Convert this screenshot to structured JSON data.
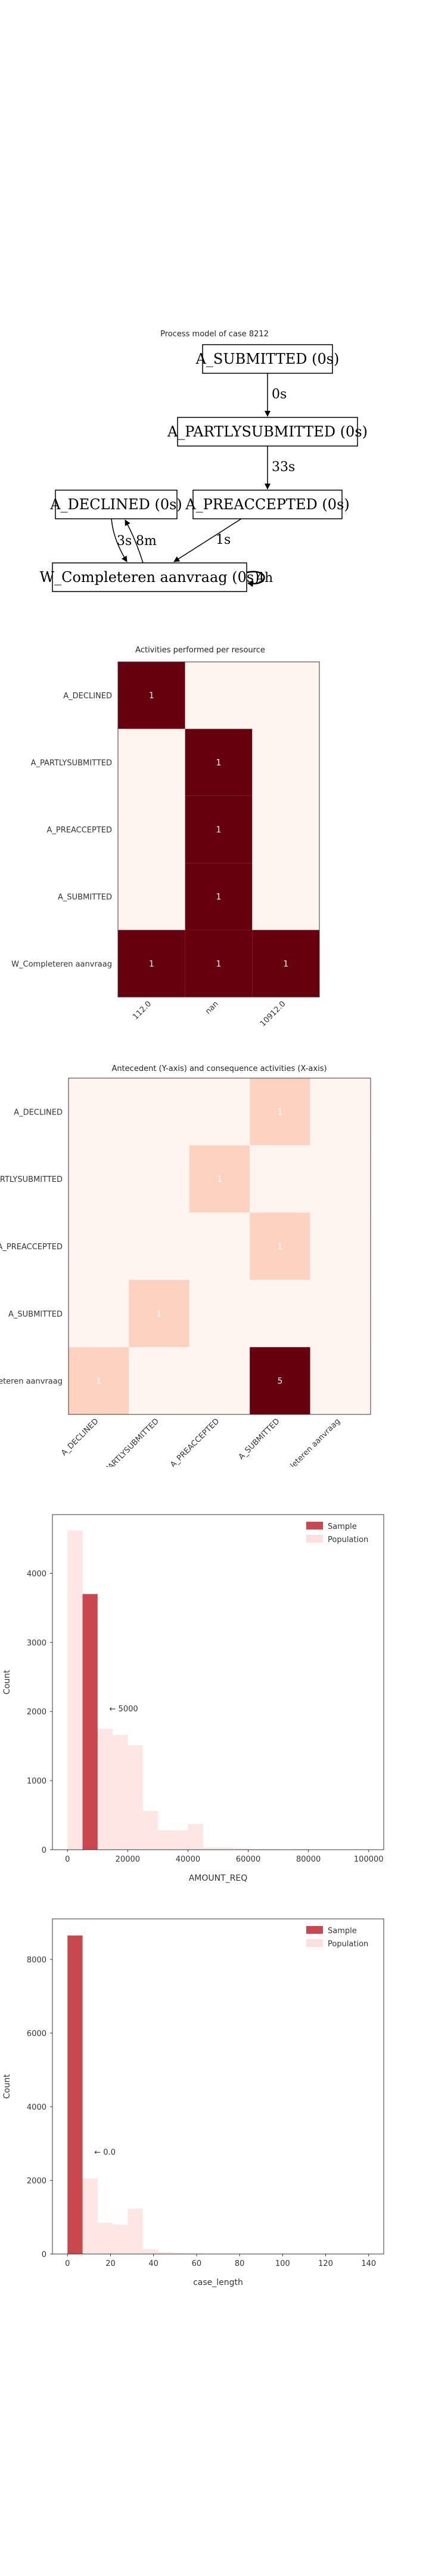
{
  "chart_data": [
    {
      "type": "diagram",
      "title": "Process model of case 8212",
      "nodes": [
        {
          "id": "n_sub",
          "label": "A_SUBMITTED (0s)"
        },
        {
          "id": "n_part",
          "label": "A_PARTLYSUBMITTED (0s)"
        },
        {
          "id": "n_dec",
          "label": "A_DECLINED (0s)"
        },
        {
          "id": "n_pre",
          "label": "A_PREACCEPTED (0s)"
        },
        {
          "id": "n_wc",
          "label": "W_Completeren aanvraag (0s)"
        }
      ],
      "edges": [
        {
          "from": "n_sub",
          "to": "n_part",
          "label": "0s"
        },
        {
          "from": "n_part",
          "to": "n_pre",
          "label": "33s"
        },
        {
          "from": "n_pre",
          "to": "n_wc",
          "label": "1s"
        },
        {
          "from": "n_dec",
          "to": "n_wc",
          "label": "3s"
        },
        {
          "from": "n_wc",
          "to": "n_dec",
          "label": "8m"
        },
        {
          "from": "n_wc",
          "to": "n_wc",
          "label": "4h"
        }
      ]
    },
    {
      "type": "heatmap",
      "title": "Activities performed per resource",
      "xlabels": [
        "112.0",
        "nan",
        "10912.0"
      ],
      "ylabels": [
        "A_DECLINED",
        "A_PARTLYSUBMITTED",
        "A_PREACCEPTED",
        "A_SUBMITTED",
        "W_Completeren aanvraag"
      ],
      "values": [
        [
          1,
          0,
          0
        ],
        [
          0,
          1,
          0
        ],
        [
          0,
          1,
          0
        ],
        [
          0,
          1,
          0
        ],
        [
          1,
          1,
          1
        ]
      ],
      "colors": {
        "low": "#fff5f0",
        "high": "#67000d"
      }
    },
    {
      "type": "heatmap",
      "title": "Antecedent (Y-axis) and consequence activities (X-axis)",
      "xlabels": [
        "A_DECLINED",
        "A_PARTLYSUBMITTED",
        "A_PREACCEPTED",
        "A_SUBMITTED",
        "W_Completeren aanvraag"
      ],
      "ylabels": [
        "A_DECLINED",
        "A_PARTLYSUBMITTED",
        "A_PREACCEPTED",
        "A_SUBMITTED",
        "W_Completeren aanvraag"
      ],
      "values": [
        [
          0,
          0,
          0,
          1,
          0
        ],
        [
          0,
          0,
          1,
          0,
          0
        ],
        [
          0,
          0,
          0,
          1,
          0
        ],
        [
          0,
          1,
          0,
          0,
          0
        ],
        [
          1,
          0,
          0,
          5,
          0
        ]
      ],
      "colors": {
        "low": "#fff5f0",
        "high": "#67000d"
      }
    },
    {
      "type": "bar",
      "xlabel": "AMOUNT_REQ",
      "ylabel": "Count",
      "xlim": [
        -5000,
        105000
      ],
      "ylim": [
        0,
        4850
      ],
      "xticks": [
        0,
        20000,
        40000,
        60000,
        80000,
        100000
      ],
      "yticks": [
        0,
        1000,
        2000,
        3000,
        4000
      ],
      "bin_width": 5000,
      "series": [
        {
          "name": "Sample",
          "bins": [
            {
              "x": 5000,
              "count": 3700
            }
          ],
          "color": "#c9474f"
        },
        {
          "name": "Population",
          "bins": [
            {
              "x": 0,
              "count": 4620
            },
            {
              "x": 5000,
              "count": 3250
            },
            {
              "x": 10000,
              "count": 1750
            },
            {
              "x": 15000,
              "count": 1660
            },
            {
              "x": 20000,
              "count": 1510
            },
            {
              "x": 25000,
              "count": 560
            },
            {
              "x": 30000,
              "count": 280
            },
            {
              "x": 35000,
              "count": 280
            },
            {
              "x": 40000,
              "count": 370
            },
            {
              "x": 45000,
              "count": 30
            },
            {
              "x": 50000,
              "count": 30
            },
            {
              "x": 55000,
              "count": 20
            },
            {
              "x": 60000,
              "count": 10
            },
            {
              "x": 65000,
              "count": 10
            },
            {
              "x": 75000,
              "count": 10
            }
          ],
          "color": "#fde0dd"
        }
      ],
      "annotation": {
        "text": "← 5000",
        "x": 5000,
        "y": 2000
      },
      "legend": "top-right"
    },
    {
      "type": "bar",
      "xlabel": "case_length",
      "ylabel": "Count",
      "xlim": [
        -7,
        147
      ],
      "ylim": [
        0,
        9100
      ],
      "xticks": [
        0,
        20,
        40,
        60,
        80,
        100,
        120,
        140
      ],
      "yticks": [
        0,
        2000,
        4000,
        6000,
        8000
      ],
      "bin_width": 7,
      "series": [
        {
          "name": "Sample",
          "bins": [
            {
              "x": 0,
              "count": 8650
            }
          ],
          "color": "#c9474f"
        },
        {
          "name": "Population",
          "bins": [
            {
              "x": 7,
              "count": 2050
            },
            {
              "x": 14,
              "count": 850
            },
            {
              "x": 21,
              "count": 800
            },
            {
              "x": 28,
              "count": 1230
            },
            {
              "x": 35,
              "count": 130
            },
            {
              "x": 42,
              "count": 50
            },
            {
              "x": 49,
              "count": 25
            },
            {
              "x": 56,
              "count": 20
            }
          ],
          "color": "#fde0dd"
        }
      ],
      "annotation": {
        "text": "← 0.0",
        "x": 0,
        "y": 2700
      },
      "legend": "top-right"
    }
  ]
}
